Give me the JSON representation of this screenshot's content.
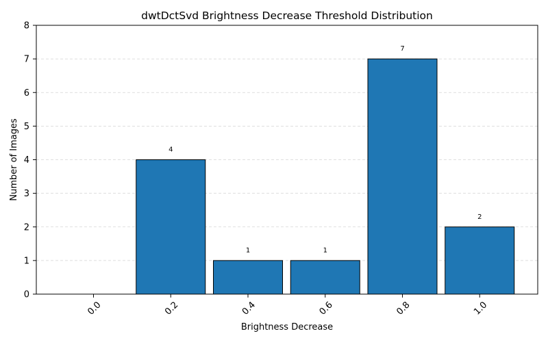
{
  "chart_data": {
    "type": "bar",
    "title": "dwtDctSvd Brightness Decrease Threshold Distribution",
    "xlabel": "Brightness Decrease",
    "ylabel": "Number of Images",
    "categories": [
      "0.0",
      "0.2",
      "0.4",
      "0.6",
      "0.8",
      "1.0"
    ],
    "values": [
      0,
      4,
      1,
      1,
      7,
      2
    ],
    "data_labels": [
      "",
      "4",
      "1",
      "1",
      "7",
      "2"
    ],
    "ylim": [
      0,
      8
    ],
    "yticks": [
      0,
      1,
      2,
      3,
      4,
      5,
      6,
      7,
      8
    ],
    "x_tick_rotation_deg": 45,
    "grid": "y-axis dashed",
    "bar_color": "#1f77b4",
    "edge_color": "#000000"
  }
}
